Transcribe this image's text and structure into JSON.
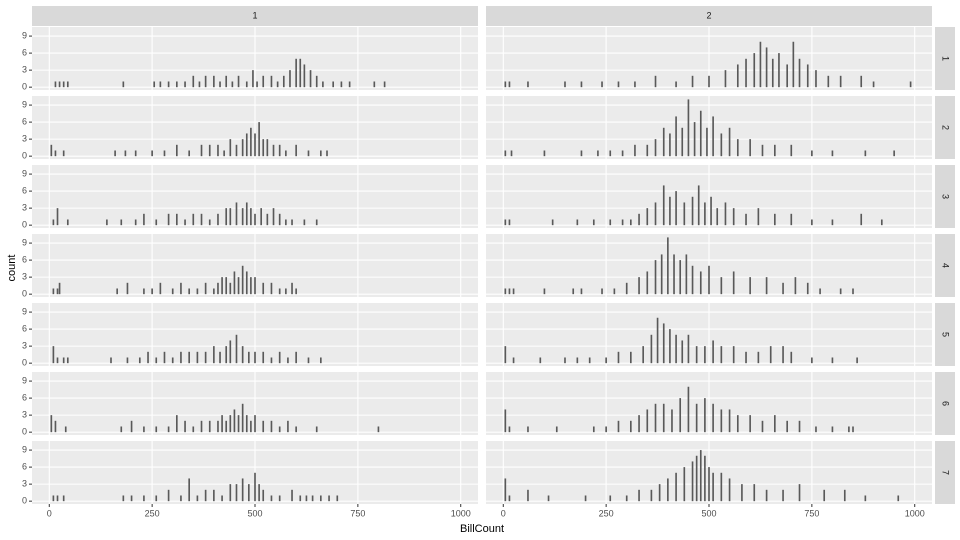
{
  "chart_data": {
    "type": "bar",
    "x_label": "BillCount",
    "y_label": "count",
    "col_labels": [
      "1",
      "2"
    ],
    "row_labels": [
      "1",
      "2",
      "3",
      "4",
      "5",
      "6",
      "7"
    ],
    "xlim": [
      -42,
      1042
    ],
    "xticks": [
      0,
      250,
      500,
      750,
      1000
    ],
    "ylim": [
      -0.5,
      10.6
    ],
    "yticks": [
      0,
      3,
      6,
      9
    ],
    "bar_width": 4,
    "color": "#595959",
    "grid": true,
    "panels": [
      [
        {
          "x": [
            15,
            25,
            35,
            45,
            180,
            255,
            270,
            290,
            310,
            330,
            350,
            365,
            380,
            400,
            415,
            430,
            445,
            460,
            480,
            495,
            505,
            520,
            540,
            555,
            570,
            585,
            600,
            610,
            620,
            635,
            650,
            665,
            690,
            710,
            730,
            790,
            815
          ],
          "values": [
            1,
            1,
            1,
            1,
            1,
            1,
            1,
            1,
            1,
            1,
            2,
            1,
            2,
            2,
            1,
            2,
            1,
            2,
            1,
            3,
            1,
            2,
            2,
            1,
            2,
            3,
            5,
            5,
            4,
            3,
            2,
            1,
            1,
            1,
            1,
            1,
            1
          ]
        },
        {
          "x": [
            5,
            15,
            60,
            150,
            190,
            240,
            280,
            320,
            370,
            420,
            460,
            500,
            540,
            570,
            590,
            610,
            625,
            640,
            655,
            670,
            690,
            705,
            720,
            740,
            760,
            790,
            820,
            870,
            900,
            990
          ],
          "values": [
            1,
            1,
            1,
            1,
            1,
            1,
            1,
            1,
            2,
            1,
            2,
            2,
            3,
            4,
            5,
            6,
            8,
            7,
            5,
            6,
            4,
            8,
            5,
            4,
            3,
            2,
            2,
            2,
            1,
            1
          ]
        }
      ],
      [
        {
          "x": [
            5,
            15,
            35,
            160,
            185,
            210,
            250,
            280,
            310,
            340,
            370,
            390,
            410,
            425,
            440,
            455,
            470,
            480,
            490,
            500,
            510,
            520,
            530,
            545,
            560,
            575,
            600,
            630,
            660,
            675
          ],
          "values": [
            2,
            1,
            1,
            1,
            1,
            1,
            1,
            1,
            2,
            1,
            2,
            2,
            2,
            1,
            3,
            2,
            3,
            4,
            5,
            4,
            6,
            3,
            3,
            2,
            2,
            1,
            2,
            1,
            1,
            1
          ]
        },
        {
          "x": [
            5,
            20,
            100,
            190,
            230,
            260,
            290,
            320,
            350,
            370,
            390,
            405,
            420,
            435,
            450,
            465,
            480,
            495,
            510,
            530,
            550,
            570,
            600,
            630,
            660,
            700,
            750,
            800,
            880,
            950
          ],
          "values": [
            1,
            1,
            1,
            1,
            1,
            1,
            1,
            2,
            2,
            3,
            5,
            4,
            7,
            5,
            10,
            6,
            8,
            5,
            7,
            4,
            5,
            3,
            3,
            2,
            2,
            2,
            1,
            1,
            1,
            1
          ]
        }
      ],
      [
        {
          "x": [
            10,
            20,
            45,
            140,
            175,
            210,
            230,
            260,
            290,
            310,
            330,
            350,
            370,
            390,
            410,
            430,
            440,
            455,
            470,
            480,
            490,
            500,
            515,
            530,
            545,
            560,
            575,
            590,
            620,
            650
          ],
          "values": [
            1,
            3,
            1,
            1,
            1,
            1,
            2,
            1,
            2,
            2,
            1,
            2,
            2,
            1,
            2,
            3,
            3,
            4,
            3,
            4,
            3,
            2,
            3,
            2,
            3,
            2,
            1,
            1,
            1,
            1
          ]
        },
        {
          "x": [
            5,
            15,
            120,
            180,
            220,
            260,
            290,
            310,
            330,
            350,
            370,
            390,
            405,
            420,
            440,
            460,
            475,
            490,
            505,
            520,
            540,
            560,
            590,
            620,
            660,
            700,
            750,
            800,
            870,
            920
          ],
          "values": [
            1,
            1,
            1,
            1,
            1,
            1,
            1,
            1,
            2,
            3,
            4,
            7,
            5,
            6,
            4,
            5,
            7,
            4,
            5,
            3,
            4,
            3,
            2,
            3,
            2,
            2,
            1,
            1,
            2,
            1
          ]
        }
      ],
      [
        {
          "x": [
            10,
            20,
            25,
            165,
            190,
            230,
            250,
            270,
            300,
            320,
            340,
            360,
            380,
            400,
            410,
            420,
            430,
            440,
            450,
            460,
            470,
            480,
            490,
            500,
            520,
            540,
            560,
            575,
            590,
            600
          ],
          "values": [
            1,
            1,
            2,
            1,
            2,
            1,
            1,
            2,
            1,
            2,
            1,
            1,
            2,
            1,
            2,
            3,
            3,
            2,
            4,
            3,
            5,
            4,
            3,
            3,
            2,
            2,
            1,
            1,
            2,
            1
          ]
        },
        {
          "x": [
            5,
            15,
            25,
            100,
            170,
            190,
            240,
            270,
            300,
            330,
            350,
            370,
            385,
            400,
            415,
            430,
            445,
            460,
            480,
            500,
            530,
            560,
            600,
            640,
            680,
            710,
            740,
            770,
            820,
            850
          ],
          "values": [
            1,
            1,
            1,
            1,
            1,
            1,
            1,
            1,
            2,
            3,
            4,
            6,
            7,
            10,
            7,
            6,
            7,
            5,
            4,
            5,
            3,
            4,
            3,
            3,
            2,
            3,
            2,
            1,
            1,
            1
          ]
        }
      ],
      [
        {
          "x": [
            10,
            20,
            35,
            45,
            150,
            190,
            220,
            240,
            260,
            280,
            300,
            320,
            340,
            360,
            380,
            400,
            415,
            430,
            440,
            455,
            470,
            485,
            500,
            520,
            540,
            560,
            580,
            600,
            630,
            660
          ],
          "values": [
            3,
            1,
            1,
            1,
            1,
            1,
            1,
            2,
            1,
            2,
            1,
            2,
            2,
            2,
            2,
            3,
            2,
            3,
            4,
            5,
            3,
            2,
            2,
            2,
            1,
            2,
            1,
            2,
            1,
            1
          ]
        },
        {
          "x": [
            5,
            25,
            90,
            150,
            180,
            210,
            250,
            280,
            310,
            340,
            360,
            375,
            390,
            405,
            420,
            435,
            450,
            470,
            490,
            510,
            530,
            560,
            590,
            620,
            650,
            680,
            700,
            750,
            800,
            860
          ],
          "values": [
            3,
            1,
            1,
            1,
            1,
            1,
            1,
            2,
            2,
            3,
            5,
            8,
            7,
            6,
            5,
            4,
            5,
            3,
            3,
            4,
            3,
            3,
            2,
            2,
            3,
            3,
            2,
            1,
            1,
            1
          ]
        }
      ],
      [
        {
          "x": [
            5,
            15,
            40,
            175,
            200,
            230,
            260,
            290,
            310,
            330,
            350,
            370,
            390,
            410,
            420,
            430,
            440,
            450,
            460,
            470,
            480,
            490,
            500,
            520,
            540,
            560,
            580,
            600,
            650,
            800
          ],
          "values": [
            3,
            2,
            1,
            1,
            2,
            1,
            1,
            1,
            3,
            2,
            1,
            2,
            2,
            2,
            3,
            2,
            3,
            4,
            3,
            5,
            3,
            2,
            3,
            2,
            2,
            1,
            2,
            1,
            1,
            1
          ]
        },
        {
          "x": [
            5,
            15,
            60,
            130,
            220,
            250,
            280,
            310,
            330,
            350,
            370,
            390,
            410,
            430,
            450,
            470,
            490,
            510,
            530,
            550,
            570,
            600,
            630,
            660,
            690,
            720,
            760,
            800,
            840,
            850
          ],
          "values": [
            4,
            1,
            1,
            1,
            1,
            1,
            2,
            2,
            3,
            4,
            5,
            5,
            4,
            6,
            8,
            5,
            6,
            5,
            4,
            4,
            3,
            3,
            2,
            3,
            2,
            2,
            1,
            1,
            1,
            1
          ]
        }
      ],
      [
        {
          "x": [
            10,
            20,
            35,
            180,
            200,
            230,
            260,
            290,
            320,
            340,
            360,
            380,
            400,
            420,
            440,
            455,
            470,
            485,
            500,
            510,
            520,
            540,
            560,
            590,
            610,
            625,
            640,
            660,
            680,
            700
          ],
          "values": [
            1,
            1,
            1,
            1,
            1,
            1,
            1,
            2,
            1,
            4,
            1,
            2,
            2,
            1,
            3,
            3,
            4,
            3,
            5,
            3,
            2,
            1,
            1,
            2,
            1,
            1,
            1,
            1,
            1,
            1
          ]
        },
        {
          "x": [
            5,
            15,
            60,
            110,
            200,
            260,
            300,
            330,
            360,
            380,
            400,
            420,
            440,
            460,
            470,
            480,
            490,
            500,
            510,
            530,
            550,
            580,
            610,
            640,
            680,
            720,
            780,
            830,
            880,
            960
          ],
          "values": [
            4,
            1,
            2,
            1,
            1,
            1,
            1,
            2,
            2,
            3,
            4,
            5,
            6,
            7,
            8,
            9,
            8,
            6,
            5,
            5,
            4,
            3,
            3,
            2,
            2,
            3,
            2,
            2,
            1,
            1
          ]
        }
      ]
    ]
  }
}
